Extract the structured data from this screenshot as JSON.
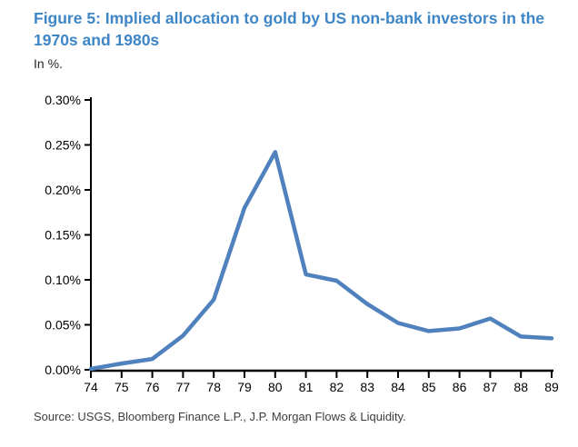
{
  "figure": {
    "title": "Figure 5: Implied allocation to gold by US non-bank investors in the 1970s and 1980s",
    "subtitle": "In %.",
    "source": "Source: USGS, Bloomberg Finance L.P., J.P. Morgan Flows & Liquidity."
  },
  "colors": {
    "title_blue": "#3F86C6",
    "line_blue": "#4F81BD",
    "axis_black": "#000000",
    "tick_text": "#000000"
  },
  "chart_data": {
    "type": "line",
    "title": "Implied allocation to gold by US non-bank investors in the 1970s and 1980s",
    "units_label": "In %.",
    "categories": [
      "74",
      "75",
      "76",
      "77",
      "78",
      "79",
      "80",
      "81",
      "82",
      "83",
      "84",
      "85",
      "86",
      "87",
      "88",
      "89"
    ],
    "values": [
      0.001,
      0.007,
      0.012,
      0.038,
      0.078,
      0.18,
      0.242,
      0.106,
      0.099,
      0.073,
      0.052,
      0.043,
      0.046,
      0.057,
      0.037,
      0.035
    ],
    "series_name": "Implied allocation to gold",
    "xlabel": "",
    "ylabel": "In %.",
    "ylim": [
      0,
      0.3
    ],
    "ytick_step": 0.05,
    "ytick_labels": [
      "0.00%",
      "0.05%",
      "0.10%",
      "0.15%",
      "0.20%",
      "0.25%",
      "0.30%"
    ],
    "grid": false,
    "legend": false
  }
}
